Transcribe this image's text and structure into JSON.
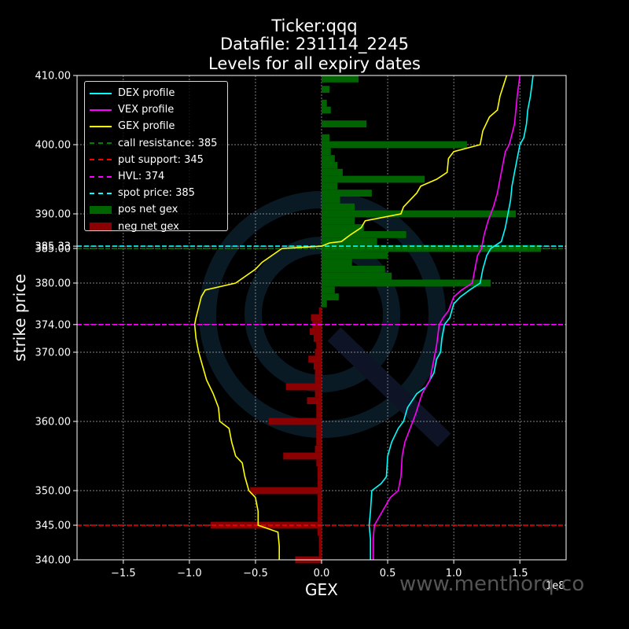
{
  "header": {
    "title_lines": [
      "Ticker:qqq",
      "Datafile: 231114_2245",
      "Levels for all expiry dates"
    ]
  },
  "watermark": "www.menthorq.co",
  "colors": {
    "background": "#000000",
    "dex": "#00ffff",
    "vex": "#ff00ff",
    "gex": "#ffff00",
    "call_resistance": "#008000",
    "put_support": "#ff0000",
    "hvl": "#ff00ff",
    "spot": "#00ffff",
    "pos_gex": "#006400",
    "neg_gex": "#8b0000"
  },
  "chart_data": {
    "type": "bar",
    "orientation": "horizontal",
    "xlabel": "GEX",
    "ylabel": "strike price",
    "x_offset_label": "1e8",
    "xlim": [
      -1.85,
      1.85
    ],
    "ylim": [
      340,
      410
    ],
    "xticks": [
      -1.5,
      -1.0,
      -0.5,
      0.0,
      0.5,
      1.0,
      1.5
    ],
    "xtick_labels": [
      "−1.5",
      "−1.0",
      "−0.5",
      "0.0",
      "0.5",
      "1.0",
      "1.5"
    ],
    "yticks": [
      340,
      345,
      350,
      360,
      370,
      374,
      380,
      385,
      385.33,
      390,
      400,
      410
    ],
    "ytick_labels": [
      "340.00",
      "345.00",
      "350.00",
      "360.00",
      "370.00",
      "374.00",
      "380.00",
      "385.00",
      "385.33",
      "390.00",
      "400.00",
      "410.00"
    ],
    "grid": true,
    "legend_position": "upper-left",
    "legend": [
      {
        "label": "DEX profile",
        "kind": "line",
        "color": "#00ffff"
      },
      {
        "label": "VEX profile",
        "kind": "line",
        "color": "#ff00ff"
      },
      {
        "label": "GEX profile",
        "kind": "line",
        "color": "#ffff00"
      },
      {
        "label": "call resistance: 385",
        "kind": "dash",
        "color": "#008000"
      },
      {
        "label": "put support: 345",
        "kind": "dash",
        "color": "#ff0000"
      },
      {
        "label": "HVL: 374",
        "kind": "dash",
        "color": "#ff00ff"
      },
      {
        "label": "spot price: 385",
        "kind": "dash",
        "color": "#00ffff"
      },
      {
        "label": "pos net gex",
        "kind": "patch",
        "color": "#006400"
      },
      {
        "label": "neg net gex",
        "kind": "patch",
        "color": "#8b0000"
      }
    ],
    "levels": {
      "call_resistance": 385,
      "put_support": 345,
      "hvl": 374,
      "spot": 385.33
    },
    "bars": [
      {
        "strike": 409.5,
        "value": 0.28
      },
      {
        "strike": 408,
        "value": 0.06
      },
      {
        "strike": 406,
        "value": 0.04
      },
      {
        "strike": 405,
        "value": 0.07
      },
      {
        "strike": 403,
        "value": 0.34
      },
      {
        "strike": 401,
        "value": 0.06
      },
      {
        "strike": 400,
        "value": 1.1
      },
      {
        "strike": 399,
        "value": 0.07
      },
      {
        "strike": 398,
        "value": 0.1
      },
      {
        "strike": 397,
        "value": 0.12
      },
      {
        "strike": 396,
        "value": 0.16
      },
      {
        "strike": 395,
        "value": 0.78
      },
      {
        "strike": 394,
        "value": 0.12
      },
      {
        "strike": 393,
        "value": 0.38
      },
      {
        "strike": 392,
        "value": 0.14
      },
      {
        "strike": 391,
        "value": 0.25
      },
      {
        "strike": 390,
        "value": 1.47
      },
      {
        "strike": 389,
        "value": 0.25
      },
      {
        "strike": 388,
        "value": 0.32
      },
      {
        "strike": 387,
        "value": 0.64
      },
      {
        "strike": 386,
        "value": 0.42
      },
      {
        "strike": 385,
        "value": 1.66
      },
      {
        "strike": 384,
        "value": 0.5
      },
      {
        "strike": 383,
        "value": 0.23
      },
      {
        "strike": 382,
        "value": 0.48
      },
      {
        "strike": 381,
        "value": 0.53
      },
      {
        "strike": 380,
        "value": 1.28
      },
      {
        "strike": 379,
        "value": 0.1
      },
      {
        "strike": 378,
        "value": 0.13
      },
      {
        "strike": 377,
        "value": 0.04
      },
      {
        "strike": 376,
        "value": -0.02
      },
      {
        "strike": 375,
        "value": -0.08
      },
      {
        "strike": 374,
        "value": -0.07
      },
      {
        "strike": 373,
        "value": -0.09
      },
      {
        "strike": 372,
        "value": -0.06
      },
      {
        "strike": 371,
        "value": -0.04
      },
      {
        "strike": 370,
        "value": -0.05
      },
      {
        "strike": 369,
        "value": -0.1
      },
      {
        "strike": 368,
        "value": -0.06
      },
      {
        "strike": 367,
        "value": -0.05
      },
      {
        "strike": 366,
        "value": -0.05
      },
      {
        "strike": 365,
        "value": -0.27
      },
      {
        "strike": 364,
        "value": -0.05
      },
      {
        "strike": 363,
        "value": -0.11
      },
      {
        "strike": 362,
        "value": -0.04
      },
      {
        "strike": 361,
        "value": -0.04
      },
      {
        "strike": 360,
        "value": -0.4
      },
      {
        "strike": 359,
        "value": -0.04
      },
      {
        "strike": 358,
        "value": -0.04
      },
      {
        "strike": 357,
        "value": -0.04
      },
      {
        "strike": 356,
        "value": -0.05
      },
      {
        "strike": 355,
        "value": -0.29
      },
      {
        "strike": 354,
        "value": -0.04
      },
      {
        "strike": 353,
        "value": -0.03
      },
      {
        "strike": 352,
        "value": -0.03
      },
      {
        "strike": 351,
        "value": -0.03
      },
      {
        "strike": 350,
        "value": -0.54
      },
      {
        "strike": 349,
        "value": -0.03
      },
      {
        "strike": 348,
        "value": -0.03
      },
      {
        "strike": 347,
        "value": -0.03
      },
      {
        "strike": 346,
        "value": -0.03
      },
      {
        "strike": 345,
        "value": -0.84
      },
      {
        "strike": 344,
        "value": -0.03
      },
      {
        "strike": 343,
        "value": -0.02
      },
      {
        "strike": 342,
        "value": -0.02
      },
      {
        "strike": 341,
        "value": -0.02
      },
      {
        "strike": 340,
        "value": -0.2
      }
    ],
    "series": [
      {
        "name": "DEX profile",
        "color": "#00ffff",
        "points": [
          [
            1.6,
            410
          ],
          [
            1.58,
            407
          ],
          [
            1.56,
            405
          ],
          [
            1.55,
            403
          ],
          [
            1.53,
            401
          ],
          [
            1.5,
            400
          ],
          [
            1.48,
            398
          ],
          [
            1.46,
            396
          ],
          [
            1.44,
            394
          ],
          [
            1.43,
            392
          ],
          [
            1.41,
            390
          ],
          [
            1.39,
            388
          ],
          [
            1.36,
            386
          ],
          [
            1.28,
            385
          ],
          [
            1.25,
            384
          ],
          [
            1.22,
            382
          ],
          [
            1.2,
            380
          ],
          [
            1.12,
            379
          ],
          [
            1.05,
            378
          ],
          [
            1.0,
            377
          ],
          [
            0.97,
            375
          ],
          [
            0.93,
            374
          ],
          [
            0.91,
            372
          ],
          [
            0.9,
            370
          ],
          [
            0.87,
            369
          ],
          [
            0.85,
            367
          ],
          [
            0.79,
            365
          ],
          [
            0.72,
            364
          ],
          [
            0.65,
            362
          ],
          [
            0.62,
            360
          ],
          [
            0.58,
            359
          ],
          [
            0.53,
            357
          ],
          [
            0.5,
            355
          ],
          [
            0.49,
            352
          ],
          [
            0.45,
            351
          ],
          [
            0.38,
            350
          ],
          [
            0.37,
            347
          ],
          [
            0.36,
            345
          ],
          [
            0.37,
            343
          ],
          [
            0.37,
            340
          ]
        ]
      },
      {
        "name": "VEX profile",
        "color": "#ff00ff",
        "points": [
          [
            1.5,
            410
          ],
          [
            1.48,
            407
          ],
          [
            1.47,
            405
          ],
          [
            1.46,
            403
          ],
          [
            1.42,
            400
          ],
          [
            1.39,
            399
          ],
          [
            1.37,
            397
          ],
          [
            1.35,
            395
          ],
          [
            1.33,
            393
          ],
          [
            1.3,
            391
          ],
          [
            1.26,
            389
          ],
          [
            1.23,
            387
          ],
          [
            1.21,
            385
          ],
          [
            1.18,
            384
          ],
          [
            1.16,
            382
          ],
          [
            1.14,
            380
          ],
          [
            1.06,
            379
          ],
          [
            1.0,
            378
          ],
          [
            0.96,
            376
          ],
          [
            0.92,
            375
          ],
          [
            0.89,
            374
          ],
          [
            0.87,
            371
          ],
          [
            0.85,
            369
          ],
          [
            0.82,
            366
          ],
          [
            0.76,
            364
          ],
          [
            0.71,
            361
          ],
          [
            0.67,
            359
          ],
          [
            0.63,
            357
          ],
          [
            0.61,
            355
          ],
          [
            0.6,
            352
          ],
          [
            0.58,
            350
          ],
          [
            0.52,
            349
          ],
          [
            0.46,
            347
          ],
          [
            0.4,
            345
          ],
          [
            0.39,
            343
          ],
          [
            0.39,
            340
          ]
        ]
      },
      {
        "name": "GEX profile",
        "color": "#ffff00",
        "points": [
          [
            1.4,
            410
          ],
          [
            1.35,
            407
          ],
          [
            1.33,
            405
          ],
          [
            1.27,
            404
          ],
          [
            1.22,
            402
          ],
          [
            1.2,
            400
          ],
          [
            1.0,
            399
          ],
          [
            0.96,
            398
          ],
          [
            0.95,
            396
          ],
          [
            0.87,
            395
          ],
          [
            0.75,
            394
          ],
          [
            0.72,
            393
          ],
          [
            0.62,
            391
          ],
          [
            0.6,
            390
          ],
          [
            0.33,
            389
          ],
          [
            0.3,
            388
          ],
          [
            0.22,
            387
          ],
          [
            0.15,
            386
          ],
          [
            0.06,
            385.8
          ],
          [
            0.0,
            385.33
          ],
          [
            -0.3,
            385
          ],
          [
            -0.45,
            383
          ],
          [
            -0.5,
            382
          ],
          [
            -0.65,
            380
          ],
          [
            -0.88,
            379
          ],
          [
            -0.91,
            378
          ],
          [
            -0.95,
            375
          ],
          [
            -0.96,
            374
          ],
          [
            -0.95,
            372
          ],
          [
            -0.93,
            370
          ],
          [
            -0.9,
            368
          ],
          [
            -0.87,
            366
          ],
          [
            -0.82,
            364
          ],
          [
            -0.78,
            362
          ],
          [
            -0.77,
            360
          ],
          [
            -0.7,
            359
          ],
          [
            -0.68,
            357
          ],
          [
            -0.65,
            355
          ],
          [
            -0.6,
            354
          ],
          [
            -0.58,
            352
          ],
          [
            -0.55,
            350
          ],
          [
            -0.5,
            349
          ],
          [
            -0.48,
            347
          ],
          [
            -0.48,
            345
          ],
          [
            -0.33,
            344
          ],
          [
            -0.32,
            342
          ],
          [
            -0.32,
            340
          ]
        ]
      }
    ]
  }
}
